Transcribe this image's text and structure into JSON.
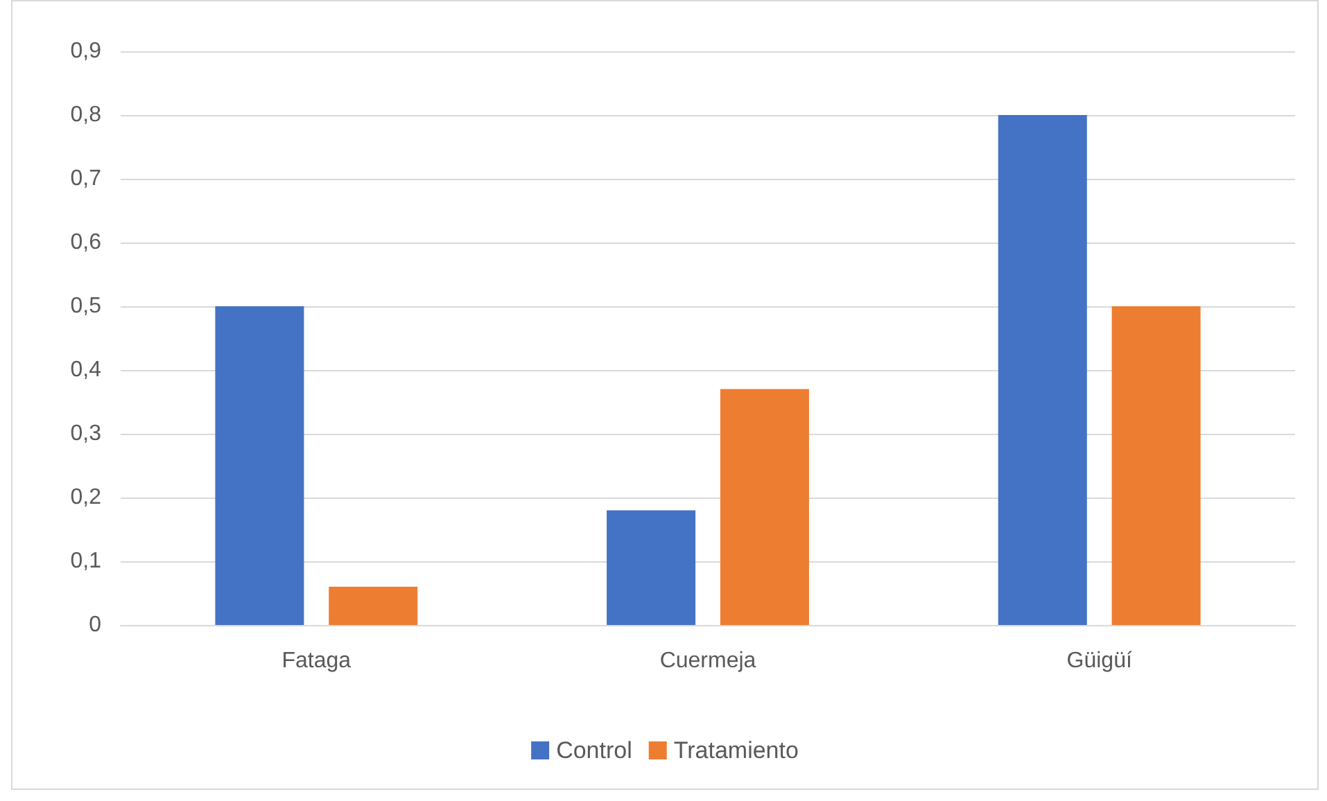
{
  "chart_data": {
    "type": "bar",
    "categories": [
      "Fataga",
      "Cuermeja",
      "Güigüí"
    ],
    "series": [
      {
        "name": "Control",
        "color": "#4472c4",
        "values": [
          0.5,
          0.18,
          0.8
        ]
      },
      {
        "name": "Tratamiento",
        "color": "#ed7d31",
        "values": [
          0.06,
          0.37,
          0.5
        ]
      }
    ],
    "ylim": [
      0,
      0.9
    ],
    "yticks": [
      0,
      {
        "value": 0.1,
        "label": "0,1"
      },
      {
        "value": 0.2,
        "label": "0,2"
      },
      {
        "value": 0.3,
        "label": "0,3"
      },
      {
        "value": 0.4,
        "label": "0,4"
      },
      {
        "value": 0.5,
        "label": "0,5"
      },
      {
        "value": 0.6,
        "label": "0,6"
      },
      {
        "value": 0.7,
        "label": "0,7"
      },
      {
        "value": 0.8,
        "label": "0,8"
      },
      {
        "value": 0.9,
        "label": "0,9"
      }
    ],
    "grid": "y",
    "legend": "bottom"
  }
}
